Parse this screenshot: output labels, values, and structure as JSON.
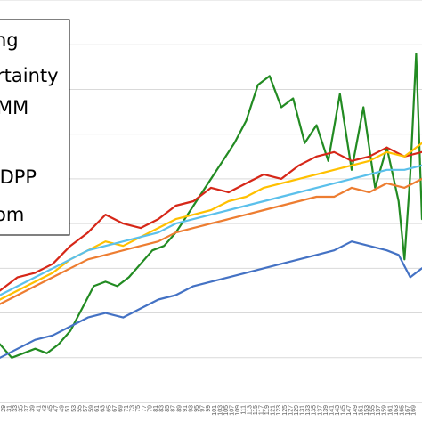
{
  "chart_data": {
    "type": "line",
    "x_tick_labels": [
      "29",
      "31",
      "33",
      "35",
      "37",
      "39",
      "41",
      "43",
      "45",
      "47",
      "49",
      "51",
      "53",
      "55",
      "57",
      "59",
      "61",
      "63",
      "65",
      "67",
      "69",
      "71",
      "73",
      "75",
      "77",
      "79",
      "81",
      "83",
      "85",
      "87",
      "89",
      "91",
      "93",
      "95",
      "97",
      "99",
      "101",
      "103",
      "105",
      "107",
      "109",
      "111",
      "113",
      "115",
      "117",
      "119",
      "121",
      "123",
      "125",
      "127",
      "129",
      "131",
      "133",
      "135",
      "137",
      "139",
      "141",
      "143",
      "145",
      "147",
      "149",
      "151",
      "153",
      "155",
      "157",
      "159",
      "161",
      "163",
      "165",
      "167",
      "169"
    ],
    "xlim": [
      28,
      172
    ],
    "ylim": [
      0,
      9
    ],
    "grid": true,
    "legend_position": "top-left",
    "legend_entries_visible": [
      "ng",
      "rtainty",
      "MM",
      "",
      "-DPP",
      "om"
    ],
    "series": [
      {
        "color": "#228b22",
        "values": [
          [
            28,
            1.3
          ],
          [
            32,
            1.0
          ],
          [
            36,
            1.1
          ],
          [
            40,
            1.2
          ],
          [
            44,
            1.1
          ],
          [
            48,
            1.3
          ],
          [
            52,
            1.6
          ],
          [
            56,
            2.1
          ],
          [
            60,
            2.6
          ],
          [
            64,
            2.7
          ],
          [
            68,
            2.6
          ],
          [
            72,
            2.8
          ],
          [
            76,
            3.1
          ],
          [
            80,
            3.4
          ],
          [
            84,
            3.5
          ],
          [
            88,
            3.8
          ],
          [
            92,
            4.2
          ],
          [
            96,
            4.6
          ],
          [
            100,
            5.0
          ],
          [
            104,
            5.4
          ],
          [
            108,
            5.8
          ],
          [
            112,
            6.3
          ],
          [
            116,
            7.1
          ],
          [
            120,
            7.3
          ],
          [
            124,
            6.6
          ],
          [
            128,
            6.8
          ],
          [
            132,
            5.8
          ],
          [
            136,
            6.2
          ],
          [
            140,
            5.4
          ],
          [
            144,
            6.9
          ],
          [
            148,
            5.2
          ],
          [
            152,
            6.6
          ],
          [
            156,
            4.8
          ],
          [
            160,
            5.7
          ],
          [
            164,
            4.5
          ],
          [
            166,
            3.2
          ],
          [
            168,
            5.1
          ],
          [
            170,
            7.8
          ],
          [
            172,
            4.1
          ]
        ]
      },
      {
        "color": "#d62718",
        "values": [
          [
            28,
            2.5
          ],
          [
            34,
            2.8
          ],
          [
            40,
            2.9
          ],
          [
            46,
            3.1
          ],
          [
            52,
            3.5
          ],
          [
            58,
            3.8
          ],
          [
            64,
            4.2
          ],
          [
            70,
            4.0
          ],
          [
            76,
            3.9
          ],
          [
            82,
            4.1
          ],
          [
            88,
            4.4
          ],
          [
            94,
            4.5
          ],
          [
            100,
            4.8
          ],
          [
            106,
            4.7
          ],
          [
            112,
            4.9
          ],
          [
            118,
            5.1
          ],
          [
            124,
            5.0
          ],
          [
            130,
            5.3
          ],
          [
            136,
            5.5
          ],
          [
            142,
            5.6
          ],
          [
            148,
            5.4
          ],
          [
            154,
            5.5
          ],
          [
            160,
            5.7
          ],
          [
            166,
            5.5
          ],
          [
            172,
            5.6
          ]
        ]
      },
      {
        "color": "#ffc000",
        "values": [
          [
            28,
            2.3
          ],
          [
            34,
            2.5
          ],
          [
            40,
            2.7
          ],
          [
            46,
            2.9
          ],
          [
            52,
            3.2
          ],
          [
            58,
            3.4
          ],
          [
            64,
            3.6
          ],
          [
            70,
            3.5
          ],
          [
            76,
            3.7
          ],
          [
            82,
            3.9
          ],
          [
            88,
            4.1
          ],
          [
            94,
            4.2
          ],
          [
            100,
            4.3
          ],
          [
            106,
            4.5
          ],
          [
            112,
            4.6
          ],
          [
            118,
            4.8
          ],
          [
            124,
            4.9
          ],
          [
            130,
            5.0
          ],
          [
            136,
            5.1
          ],
          [
            142,
            5.2
          ],
          [
            148,
            5.3
          ],
          [
            154,
            5.4
          ],
          [
            160,
            5.6
          ],
          [
            166,
            5.5
          ],
          [
            172,
            5.8
          ]
        ]
      },
      {
        "color": "#ed7d31",
        "values": [
          [
            28,
            2.2
          ],
          [
            34,
            2.4
          ],
          [
            40,
            2.6
          ],
          [
            46,
            2.8
          ],
          [
            52,
            3.0
          ],
          [
            58,
            3.2
          ],
          [
            64,
            3.3
          ],
          [
            70,
            3.4
          ],
          [
            76,
            3.5
          ],
          [
            82,
            3.6
          ],
          [
            88,
            3.8
          ],
          [
            94,
            3.9
          ],
          [
            100,
            4.0
          ],
          [
            106,
            4.1
          ],
          [
            112,
            4.2
          ],
          [
            118,
            4.3
          ],
          [
            124,
            4.4
          ],
          [
            130,
            4.5
          ],
          [
            136,
            4.6
          ],
          [
            142,
            4.6
          ],
          [
            148,
            4.8
          ],
          [
            154,
            4.7
          ],
          [
            160,
            4.9
          ],
          [
            166,
            4.8
          ],
          [
            172,
            5.0
          ]
        ]
      },
      {
        "color": "#5bc0eb",
        "values": [
          [
            28,
            2.4
          ],
          [
            34,
            2.6
          ],
          [
            40,
            2.8
          ],
          [
            46,
            3.0
          ],
          [
            52,
            3.2
          ],
          [
            58,
            3.4
          ],
          [
            64,
            3.5
          ],
          [
            70,
            3.6
          ],
          [
            76,
            3.7
          ],
          [
            82,
            3.8
          ],
          [
            88,
            4.0
          ],
          [
            94,
            4.1
          ],
          [
            100,
            4.2
          ],
          [
            106,
            4.3
          ],
          [
            112,
            4.4
          ],
          [
            118,
            4.5
          ],
          [
            124,
            4.6
          ],
          [
            130,
            4.7
          ],
          [
            136,
            4.8
          ],
          [
            142,
            4.9
          ],
          [
            148,
            5.0
          ],
          [
            154,
            5.1
          ],
          [
            160,
            5.2
          ],
          [
            166,
            5.2
          ],
          [
            172,
            5.3
          ]
        ]
      },
      {
        "color": "#4472c4",
        "values": [
          [
            28,
            1.0
          ],
          [
            34,
            1.2
          ],
          [
            40,
            1.4
          ],
          [
            46,
            1.5
          ],
          [
            52,
            1.7
          ],
          [
            58,
            1.9
          ],
          [
            64,
            2.0
          ],
          [
            70,
            1.9
          ],
          [
            76,
            2.1
          ],
          [
            82,
            2.3
          ],
          [
            88,
            2.4
          ],
          [
            94,
            2.6
          ],
          [
            100,
            2.7
          ],
          [
            106,
            2.8
          ],
          [
            112,
            2.9
          ],
          [
            118,
            3.0
          ],
          [
            124,
            3.1
          ],
          [
            130,
            3.2
          ],
          [
            136,
            3.3
          ],
          [
            142,
            3.4
          ],
          [
            148,
            3.6
          ],
          [
            154,
            3.5
          ],
          [
            160,
            3.4
          ],
          [
            164,
            3.3
          ],
          [
            168,
            2.8
          ],
          [
            172,
            3.0
          ]
        ]
      }
    ]
  }
}
